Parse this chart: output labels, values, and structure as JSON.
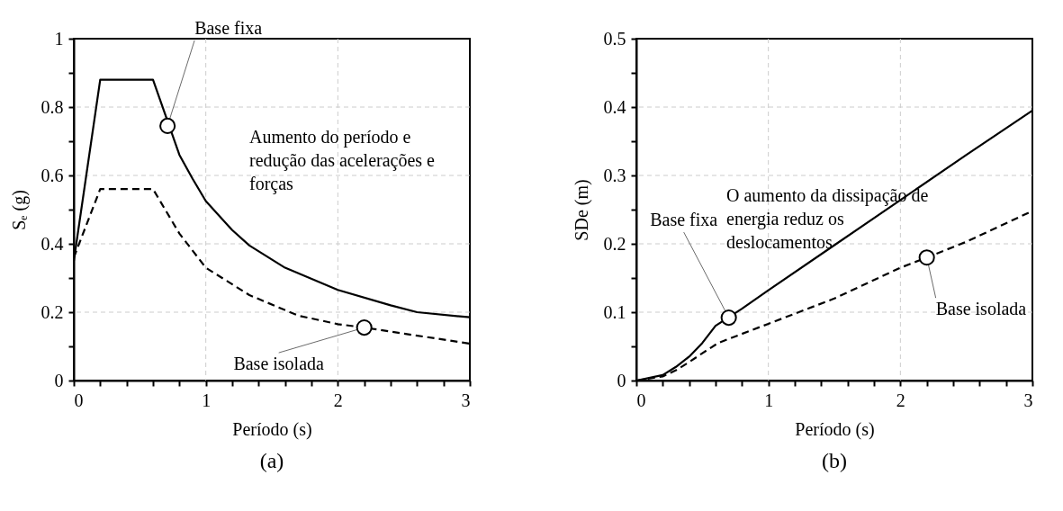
{
  "chart_data": [
    {
      "type": "line",
      "title": "(a)",
      "xlabel": "Período (s)",
      "ylabel": "Sₑ  (g)",
      "xlim": [
        0,
        3
      ],
      "ylim": [
        0,
        1
      ],
      "xticks": [
        0,
        {
          "value": 0.2,
          "label": null
        },
        {
          "value": 0.4,
          "label": null
        },
        {
          "value": 0.6,
          "label": null
        },
        {
          "value": 0.8,
          "label": null
        },
        1,
        {
          "value": 1.2,
          "label": null
        },
        {
          "value": 1.4,
          "label": null
        },
        {
          "value": 1.6,
          "label": null
        },
        {
          "value": 1.8,
          "label": null
        },
        2,
        {
          "value": 2.2,
          "label": null
        },
        {
          "value": 2.4,
          "label": null
        },
        {
          "value": 2.6,
          "label": null
        },
        {
          "value": 2.8,
          "label": null
        },
        3
      ],
      "yticks": [
        0,
        {
          "value": 0.1,
          "label": null
        },
        0.2,
        {
          "value": 0.3,
          "label": null
        },
        0.4,
        {
          "value": 0.5,
          "label": null
        },
        0.6,
        {
          "value": 0.7,
          "label": null
        },
        0.8,
        {
          "value": 0.9,
          "label": null
        },
        1
      ],
      "grid": true,
      "marker": "none",
      "series": [
        {
          "color": "#000000",
          "line_style": "solid",
          "x": [
            0,
            0.2,
            0.6,
            0.8,
            0.9,
            1.0,
            1.2,
            1.33,
            1.6,
            2.0,
            2.4,
            2.6,
            3.0
          ],
          "values": [
            0.35,
            0.88,
            0.88,
            0.66,
            0.59,
            0.525,
            0.44,
            0.395,
            0.33,
            0.265,
            0.22,
            0.2,
            0.185
          ]
        },
        {
          "color": "#000000",
          "line_style": "dashed",
          "x": [
            0,
            0.2,
            0.6,
            0.8,
            1.0,
            1.33,
            1.7,
            2.0,
            2.2,
            3.0
          ],
          "values": [
            0.36,
            0.56,
            0.56,
            0.43,
            0.33,
            0.25,
            0.19,
            0.165,
            0.155,
            0.108
          ]
        }
      ],
      "annotations": [
        {
          "text": "Base fixa",
          "x": 0.71,
          "y": 0.745
        },
        {
          "text": "Base isolada",
          "x": 2.2,
          "y": 0.155
        },
        "Aumento do período e\nredução das acelerações e\nforças"
      ]
    },
    {
      "type": "line",
      "title": "(b)",
      "xlabel": "Período (s)",
      "ylabel": "SDe (m)",
      "xlim": [
        0,
        3
      ],
      "ylim": [
        0,
        0.5
      ],
      "xticks": [
        0,
        {
          "value": 0.2,
          "label": null
        },
        {
          "value": 0.4,
          "label": null
        },
        {
          "value": 0.6,
          "label": null
        },
        {
          "value": 0.8,
          "label": null
        },
        1,
        {
          "value": 1.2,
          "label": null
        },
        {
          "value": 1.4,
          "label": null
        },
        {
          "value": 1.6,
          "label": null
        },
        {
          "value": 1.8,
          "label": null
        },
        2,
        {
          "value": 2.2,
          "label": null
        },
        {
          "value": 2.4,
          "label": null
        },
        {
          "value": 2.6,
          "label": null
        },
        {
          "value": 2.8,
          "label": null
        },
        3
      ],
      "yticks": [
        0,
        {
          "value": 0.05,
          "label": null
        },
        0.1,
        {
          "value": 0.15,
          "label": null
        },
        0.2,
        {
          "value": 0.25,
          "label": null
        },
        0.3,
        {
          "value": 0.35,
          "label": null
        },
        0.4,
        {
          "value": 0.45,
          "label": null
        },
        0.5
      ],
      "grid": true,
      "marker": "none",
      "series": [
        {
          "color": "#000000",
          "line_style": "solid",
          "x": [
            0,
            0.2,
            0.3,
            0.4,
            0.5,
            0.6,
            0.8,
            1.0,
            1.5,
            2.0,
            2.5,
            3.0
          ],
          "values": [
            0,
            0.008,
            0.02,
            0.035,
            0.055,
            0.08,
            0.105,
            0.132,
            0.198,
            0.264,
            0.33,
            0.395
          ]
        },
        {
          "color": "#000000",
          "line_style": "dashed",
          "x": [
            0,
            0.2,
            0.3,
            0.4,
            0.5,
            0.62,
            1.0,
            1.5,
            2.0,
            2.2,
            2.5,
            3.0
          ],
          "values": [
            0,
            0.006,
            0.015,
            0.027,
            0.04,
            0.055,
            0.083,
            0.12,
            0.165,
            0.18,
            0.203,
            0.248
          ]
        }
      ],
      "annotations": [
        {
          "text": "Base fixa",
          "x": 0.7,
          "y": 0.092
        },
        {
          "text": "Base isolada",
          "x": 2.2,
          "y": 0.18
        },
        "O aumento da dissipação de\nenergia reduz os\ndeslocamentos"
      ]
    }
  ]
}
